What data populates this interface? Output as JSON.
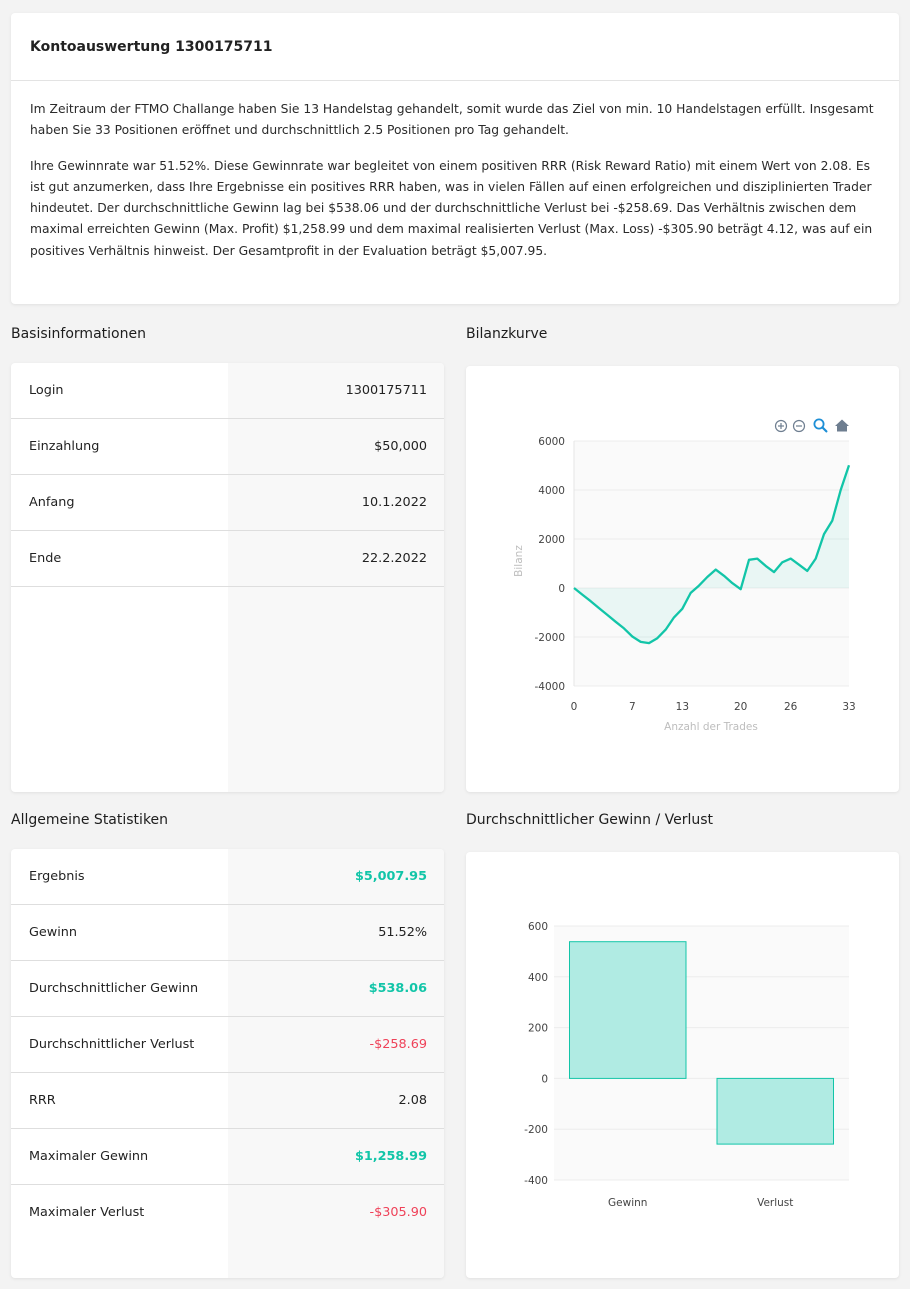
{
  "summary": {
    "title": "Kontoauswertung 1300175711",
    "paragraph1": "Im Zeitraum der FTMO Challange haben Sie 13 Handelstag gehandelt, somit wurde das Ziel von min. 10 Handelstagen erfüllt. Insgesamt haben Sie 33 Positionen eröffnet und durchschnittlich 2.5 Positionen pro Tag gehandelt.",
    "paragraph2": "Ihre Gewinnrate war 51.52%. Diese Gewinnrate war begleitet von einem positiven RRR (Risk Reward Ratio) mit einem Wert von 2.08. Es ist gut anzumerken, dass Ihre Ergebnisse ein positives RRR haben, was in vielen Fällen auf einen erfolgreichen und disziplinierten Trader hindeutet. Der durchschnittliche Gewinn lag bei $538.06 und der durchschnittliche Verlust bei -$258.69. Das Verhältnis zwischen dem maximal erreichten Gewinn (Max. Profit) $1,258.99 und dem maximal realisierten Verlust (Max. Loss) -$305.90 beträgt 4.12, was auf ein positives Verhältnis hinweist. Der Gesamtprofit in der Evaluation beträgt $5,007.95."
  },
  "basis": {
    "title": "Basisinformationen",
    "rows": [
      {
        "label": "Login",
        "value": "1300175711"
      },
      {
        "label": "Einzahlung",
        "value": "$50,000"
      },
      {
        "label": "Anfang",
        "value": "10.1.2022"
      },
      {
        "label": "Ende",
        "value": "22.2.2022"
      }
    ]
  },
  "stats": {
    "title": "Allgemeine Statistiken",
    "rows": [
      {
        "label": "Ergebnis",
        "value": "$5,007.95",
        "tone": "pos"
      },
      {
        "label": "Gewinn",
        "value": "51.52%",
        "tone": ""
      },
      {
        "label": "Durchschnittlicher Gewinn",
        "value": "$538.06",
        "tone": "pos"
      },
      {
        "label": "Durchschnittlicher Verlust",
        "value": "-$258.69",
        "tone": "neg"
      },
      {
        "label": "RRR",
        "value": "2.08",
        "tone": ""
      },
      {
        "label": "Maximaler Gewinn",
        "value": "$1,258.99",
        "tone": "pos"
      },
      {
        "label": "Maximaler Verlust",
        "value": "-$305.90",
        "tone": "neg"
      }
    ]
  },
  "colors": {
    "accent": "#12c5a8",
    "positive": "#12c5a8",
    "negative": "#ef4259",
    "bar_fill": "#b0ebe3"
  },
  "toolbar_icons": [
    "zoom-in-icon",
    "zoom-out-icon",
    "magnifier-icon",
    "home-icon"
  ],
  "chart_data": [
    {
      "type": "area",
      "section_title": "Bilanzkurve",
      "title": "",
      "xlabel": "Anzahl der Trades",
      "ylabel": "Bilanz",
      "xlim": [
        0,
        33
      ],
      "ylim": [
        -4000,
        6000
      ],
      "x_ticks": [
        "0",
        "7",
        "13",
        "20",
        "26",
        "33"
      ],
      "y_ticks": [
        "6000",
        "4000",
        "2000",
        "0",
        "-2000",
        "-4000"
      ],
      "x": [
        0,
        1,
        2,
        3,
        4,
        5,
        6,
        7,
        8,
        9,
        10,
        11,
        12,
        13,
        14,
        15,
        16,
        17,
        18,
        19,
        20,
        21,
        22,
        23,
        24,
        25,
        26,
        27,
        28,
        29,
        30,
        31,
        32,
        33
      ],
      "values": [
        0,
        -270,
        -540,
        -820,
        -1100,
        -1380,
        -1650,
        -1980,
        -2200,
        -2250,
        -2050,
        -1700,
        -1200,
        -850,
        -200,
        100,
        450,
        750,
        500,
        200,
        -50,
        1150,
        1200,
        900,
        650,
        1050,
        1200,
        950,
        700,
        1200,
        2200,
        2750,
        4000,
        5007.95
      ]
    },
    {
      "type": "bar",
      "section_title": "Durchschnittlicher Gewinn / Verlust",
      "title": "",
      "categories": [
        "Gewinn",
        "Verlust"
      ],
      "values": [
        538.06,
        -258.69
      ],
      "ylim": [
        -400,
        600
      ],
      "y_ticks": [
        "600",
        "400",
        "200",
        "0",
        "-200",
        "-400"
      ]
    }
  ]
}
